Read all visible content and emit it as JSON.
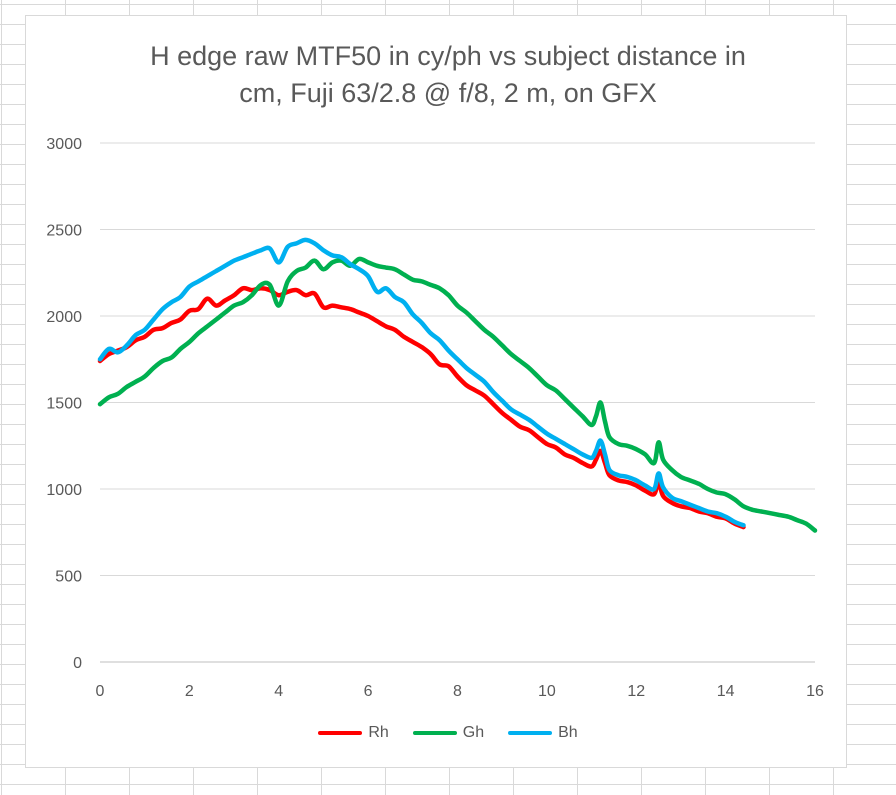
{
  "chart_data": {
    "type": "line",
    "title_lines": [
      "H edge raw MTF50 in cy/ph vs subject distance in",
      "cm, Fuji 63/2.8 @ f/8, 2 m, on GFX"
    ],
    "xlabel": "",
    "ylabel": "",
    "xlim": [
      0,
      16
    ],
    "ylim": [
      0,
      3000
    ],
    "xticks": [
      "0",
      "2",
      "4",
      "6",
      "8",
      "10",
      "12",
      "14",
      "16"
    ],
    "yticks": [
      "0",
      "500",
      "1000",
      "1500",
      "2000",
      "2500",
      "3000"
    ],
    "grid": "horizontal",
    "legend_position": "bottom",
    "series": [
      {
        "name": "Rh",
        "color": "#ff0000",
        "points": [
          [
            0,
            1740
          ],
          [
            0.2,
            1780
          ],
          [
            0.4,
            1800
          ],
          [
            0.6,
            1820
          ],
          [
            0.8,
            1860
          ],
          [
            1.0,
            1880
          ],
          [
            1.2,
            1920
          ],
          [
            1.4,
            1930
          ],
          [
            1.6,
            1960
          ],
          [
            1.8,
            1980
          ],
          [
            2.0,
            2030
          ],
          [
            2.2,
            2040
          ],
          [
            2.4,
            2100
          ],
          [
            2.6,
            2060
          ],
          [
            2.8,
            2090
          ],
          [
            3.0,
            2120
          ],
          [
            3.2,
            2160
          ],
          [
            3.4,
            2150
          ],
          [
            3.6,
            2160
          ],
          [
            3.8,
            2150
          ],
          [
            4.0,
            2120
          ],
          [
            4.2,
            2140
          ],
          [
            4.4,
            2150
          ],
          [
            4.6,
            2120
          ],
          [
            4.8,
            2130
          ],
          [
            5.0,
            2050
          ],
          [
            5.2,
            2060
          ],
          [
            5.4,
            2050
          ],
          [
            5.6,
            2040
          ],
          [
            5.8,
            2020
          ],
          [
            6.0,
            2000
          ],
          [
            6.2,
            1970
          ],
          [
            6.4,
            1940
          ],
          [
            6.6,
            1920
          ],
          [
            6.8,
            1880
          ],
          [
            7.0,
            1850
          ],
          [
            7.2,
            1820
          ],
          [
            7.4,
            1780
          ],
          [
            7.6,
            1720
          ],
          [
            7.8,
            1710
          ],
          [
            8.0,
            1650
          ],
          [
            8.2,
            1600
          ],
          [
            8.4,
            1570
          ],
          [
            8.6,
            1540
          ],
          [
            8.8,
            1490
          ],
          [
            9.0,
            1440
          ],
          [
            9.2,
            1400
          ],
          [
            9.4,
            1360
          ],
          [
            9.6,
            1340
          ],
          [
            9.8,
            1300
          ],
          [
            10.0,
            1260
          ],
          [
            10.2,
            1240
          ],
          [
            10.4,
            1200
          ],
          [
            10.6,
            1180
          ],
          [
            10.8,
            1150
          ],
          [
            11.0,
            1130
          ],
          [
            11.1,
            1170
          ],
          [
            11.2,
            1220
          ],
          [
            11.3,
            1150
          ],
          [
            11.4,
            1080
          ],
          [
            11.6,
            1050
          ],
          [
            11.8,
            1040
          ],
          [
            12.0,
            1020
          ],
          [
            12.2,
            990
          ],
          [
            12.4,
            970
          ],
          [
            12.5,
            1040
          ],
          [
            12.6,
            960
          ],
          [
            12.8,
            920
          ],
          [
            13.0,
            900
          ],
          [
            13.2,
            890
          ],
          [
            13.4,
            870
          ],
          [
            13.6,
            860
          ],
          [
            13.8,
            840
          ],
          [
            14.0,
            830
          ],
          [
            14.2,
            800
          ],
          [
            14.4,
            780
          ]
        ]
      },
      {
        "name": "Gh",
        "color": "#00b050",
        "points": [
          [
            0,
            1490
          ],
          [
            0.2,
            1530
          ],
          [
            0.4,
            1550
          ],
          [
            0.6,
            1590
          ],
          [
            0.8,
            1620
          ],
          [
            1.0,
            1650
          ],
          [
            1.2,
            1700
          ],
          [
            1.4,
            1740
          ],
          [
            1.6,
            1760
          ],
          [
            1.8,
            1810
          ],
          [
            2.0,
            1850
          ],
          [
            2.2,
            1900
          ],
          [
            2.4,
            1940
          ],
          [
            2.6,
            1980
          ],
          [
            2.8,
            2020
          ],
          [
            3.0,
            2060
          ],
          [
            3.2,
            2080
          ],
          [
            3.4,
            2120
          ],
          [
            3.6,
            2180
          ],
          [
            3.8,
            2180
          ],
          [
            4.0,
            2060
          ],
          [
            4.2,
            2200
          ],
          [
            4.4,
            2260
          ],
          [
            4.6,
            2280
          ],
          [
            4.8,
            2320
          ],
          [
            5.0,
            2270
          ],
          [
            5.2,
            2310
          ],
          [
            5.4,
            2320
          ],
          [
            5.6,
            2290
          ],
          [
            5.8,
            2330
          ],
          [
            6.0,
            2310
          ],
          [
            6.2,
            2290
          ],
          [
            6.4,
            2280
          ],
          [
            6.6,
            2270
          ],
          [
            6.8,
            2240
          ],
          [
            7.0,
            2210
          ],
          [
            7.2,
            2200
          ],
          [
            7.4,
            2180
          ],
          [
            7.6,
            2160
          ],
          [
            7.8,
            2120
          ],
          [
            8.0,
            2060
          ],
          [
            8.2,
            2020
          ],
          [
            8.4,
            1970
          ],
          [
            8.6,
            1920
          ],
          [
            8.8,
            1880
          ],
          [
            9.0,
            1830
          ],
          [
            9.2,
            1780
          ],
          [
            9.4,
            1740
          ],
          [
            9.6,
            1700
          ],
          [
            9.8,
            1650
          ],
          [
            10.0,
            1600
          ],
          [
            10.2,
            1570
          ],
          [
            10.4,
            1520
          ],
          [
            10.6,
            1470
          ],
          [
            10.8,
            1420
          ],
          [
            11.0,
            1370
          ],
          [
            11.1,
            1420
          ],
          [
            11.2,
            1500
          ],
          [
            11.3,
            1390
          ],
          [
            11.4,
            1300
          ],
          [
            11.6,
            1260
          ],
          [
            11.8,
            1250
          ],
          [
            12.0,
            1230
          ],
          [
            12.2,
            1200
          ],
          [
            12.4,
            1150
          ],
          [
            12.5,
            1270
          ],
          [
            12.6,
            1170
          ],
          [
            12.8,
            1110
          ],
          [
            13.0,
            1070
          ],
          [
            13.2,
            1050
          ],
          [
            13.4,
            1030
          ],
          [
            13.6,
            1000
          ],
          [
            13.8,
            980
          ],
          [
            14.0,
            970
          ],
          [
            14.2,
            940
          ],
          [
            14.4,
            900
          ],
          [
            14.6,
            880
          ],
          [
            14.8,
            870
          ],
          [
            15.0,
            860
          ],
          [
            15.2,
            850
          ],
          [
            15.4,
            840
          ],
          [
            15.6,
            820
          ],
          [
            15.8,
            800
          ],
          [
            16.0,
            760
          ]
        ]
      },
      {
        "name": "Bh",
        "color": "#00b0f0",
        "points": [
          [
            0,
            1750
          ],
          [
            0.2,
            1810
          ],
          [
            0.4,
            1790
          ],
          [
            0.6,
            1830
          ],
          [
            0.8,
            1890
          ],
          [
            1.0,
            1920
          ],
          [
            1.2,
            1980
          ],
          [
            1.4,
            2040
          ],
          [
            1.6,
            2080
          ],
          [
            1.8,
            2110
          ],
          [
            2.0,
            2170
          ],
          [
            2.2,
            2200
          ],
          [
            2.4,
            2230
          ],
          [
            2.6,
            2260
          ],
          [
            2.8,
            2290
          ],
          [
            3.0,
            2320
          ],
          [
            3.2,
            2340
          ],
          [
            3.4,
            2360
          ],
          [
            3.6,
            2380
          ],
          [
            3.8,
            2390
          ],
          [
            4.0,
            2310
          ],
          [
            4.2,
            2400
          ],
          [
            4.4,
            2420
          ],
          [
            4.6,
            2440
          ],
          [
            4.8,
            2420
          ],
          [
            5.0,
            2380
          ],
          [
            5.2,
            2350
          ],
          [
            5.4,
            2340
          ],
          [
            5.6,
            2300
          ],
          [
            5.8,
            2270
          ],
          [
            6.0,
            2230
          ],
          [
            6.2,
            2140
          ],
          [
            6.4,
            2160
          ],
          [
            6.6,
            2110
          ],
          [
            6.8,
            2080
          ],
          [
            7.0,
            2010
          ],
          [
            7.2,
            1960
          ],
          [
            7.4,
            1900
          ],
          [
            7.6,
            1860
          ],
          [
            7.8,
            1800
          ],
          [
            8.0,
            1750
          ],
          [
            8.2,
            1700
          ],
          [
            8.4,
            1660
          ],
          [
            8.6,
            1620
          ],
          [
            8.8,
            1560
          ],
          [
            9.0,
            1510
          ],
          [
            9.2,
            1460
          ],
          [
            9.4,
            1430
          ],
          [
            9.6,
            1400
          ],
          [
            9.8,
            1360
          ],
          [
            10.0,
            1320
          ],
          [
            10.2,
            1290
          ],
          [
            10.4,
            1260
          ],
          [
            10.6,
            1230
          ],
          [
            10.8,
            1200
          ],
          [
            11.0,
            1180
          ],
          [
            11.1,
            1220
          ],
          [
            11.2,
            1280
          ],
          [
            11.3,
            1200
          ],
          [
            11.4,
            1110
          ],
          [
            11.6,
            1080
          ],
          [
            11.8,
            1070
          ],
          [
            12.0,
            1050
          ],
          [
            12.2,
            1020
          ],
          [
            12.4,
            1000
          ],
          [
            12.5,
            1090
          ],
          [
            12.6,
            1010
          ],
          [
            12.8,
            950
          ],
          [
            13.0,
            930
          ],
          [
            13.2,
            910
          ],
          [
            13.4,
            890
          ],
          [
            13.6,
            870
          ],
          [
            13.8,
            860
          ],
          [
            14.0,
            840
          ],
          [
            14.2,
            810
          ],
          [
            14.4,
            790
          ]
        ]
      }
    ]
  }
}
